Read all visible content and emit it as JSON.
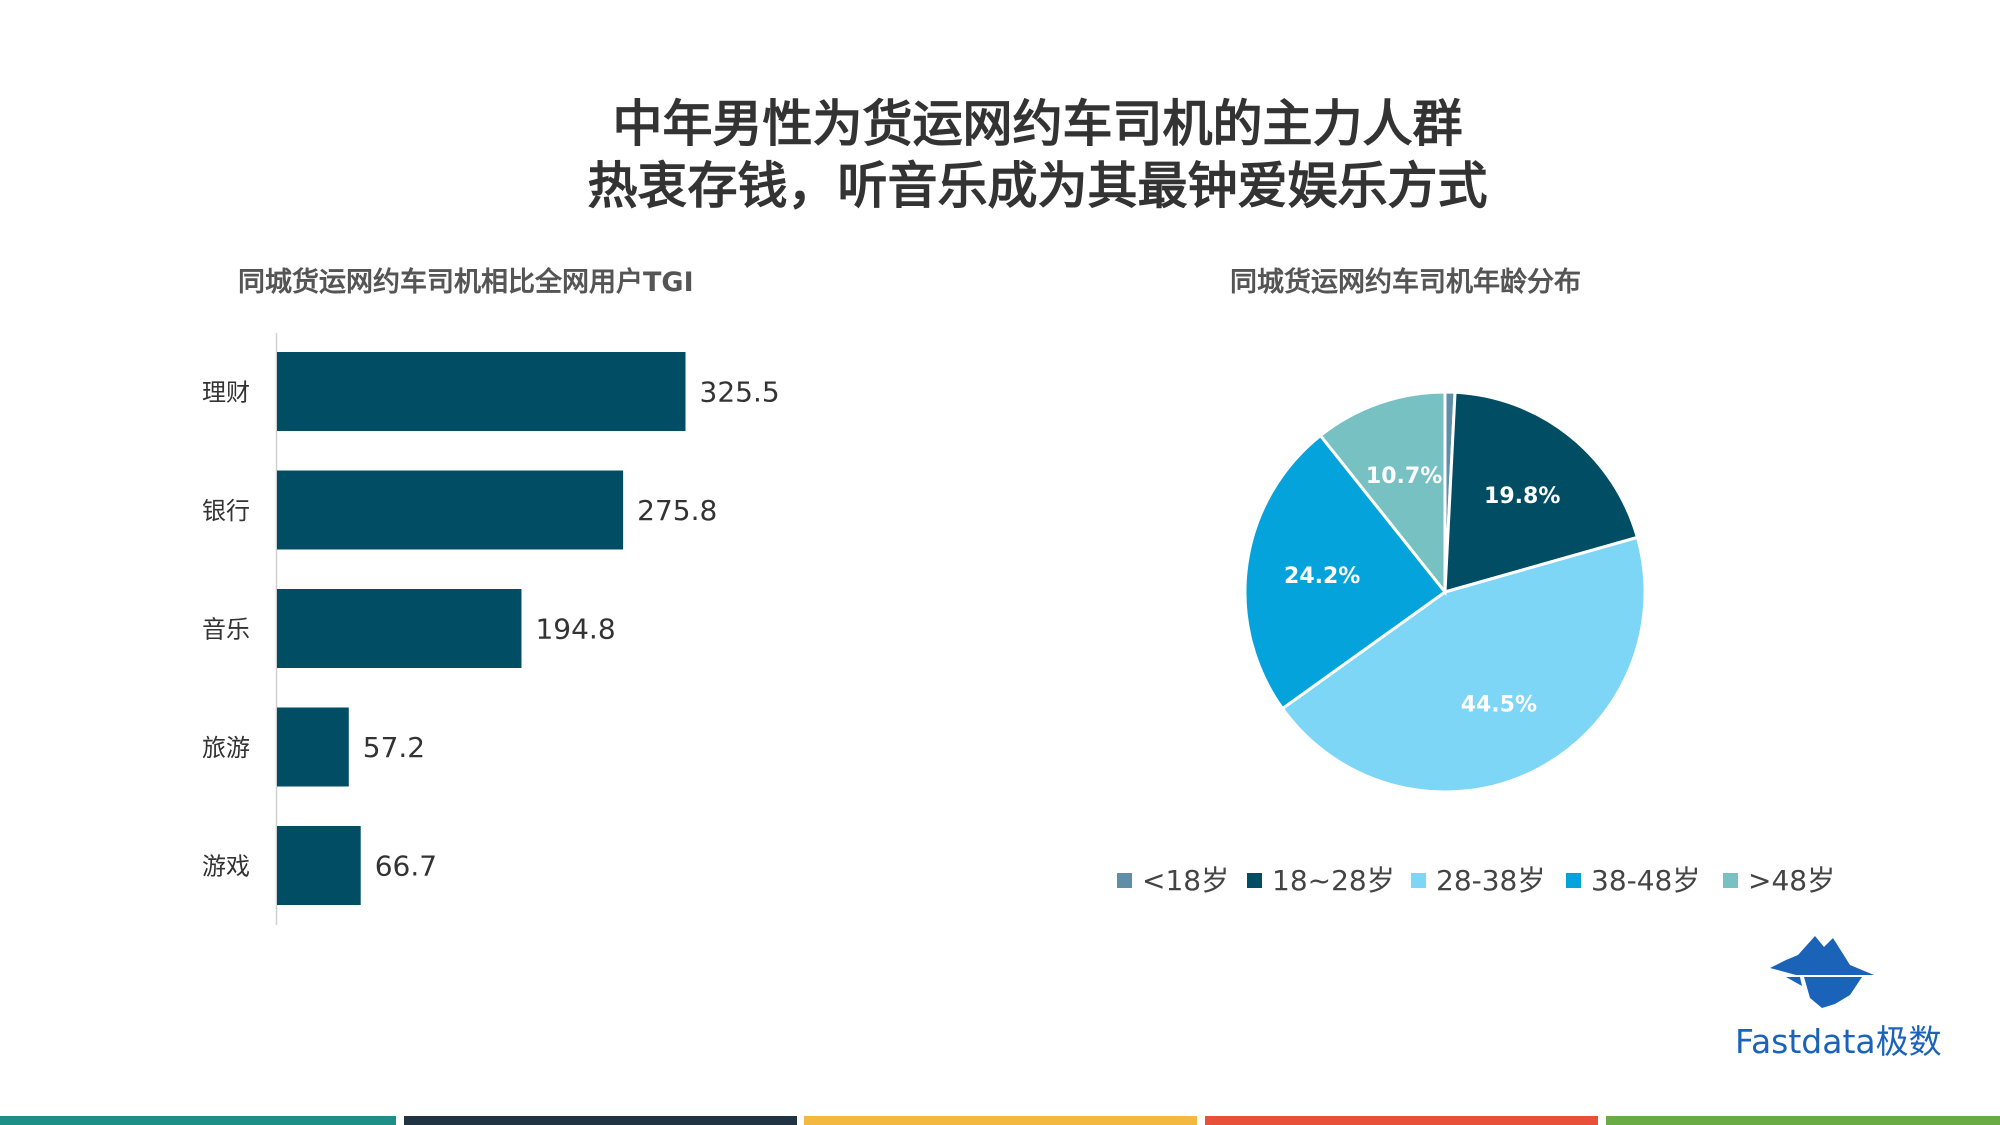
{
  "header": {
    "line1": "中年男性为货运网约车司机的主力人群",
    "line2": "热衷存钱，听音乐成为其最钟爱娱乐方式"
  },
  "brand": {
    "name": "Fastdata极数",
    "color": "#1b63b8",
    "icon": "iceberg-icon"
  },
  "footer_colors": [
    "#1d8f87",
    "#213444",
    "#f2b83f",
    "#e8503a",
    "#6aab45"
  ],
  "chart_data": [
    {
      "type": "bar",
      "orientation": "horizontal",
      "title": "同城货运网约车司机相比全网用户TGI",
      "categories": [
        "理财",
        "银行",
        "音乐",
        "旅游",
        "游戏"
      ],
      "values": [
        325.5,
        275.8,
        194.8,
        57.2,
        66.7
      ],
      "value_labels": [
        "325.5",
        "275.8",
        "194.8",
        "57.2",
        "66.7"
      ],
      "xlim": [
        0,
        600
      ],
      "color": "#014d63",
      "grid": false,
      "legend": "none"
    },
    {
      "type": "pie",
      "title": "同城货运网约车司机年龄分布",
      "labels": [
        "<18岁",
        "18~28岁",
        "28-38岁",
        "38-48岁",
        ">48岁"
      ],
      "values": [
        0.8,
        19.8,
        44.5,
        24.2,
        10.7
      ],
      "slice_labels": [
        "",
        "19.8%",
        "44.5%",
        "24.2%",
        "10.7%"
      ],
      "colors": [
        "#5f8fa8",
        "#014d63",
        "#7dd6f5",
        "#05a3dc",
        "#77c1c3"
      ],
      "legend": "bottom"
    }
  ]
}
